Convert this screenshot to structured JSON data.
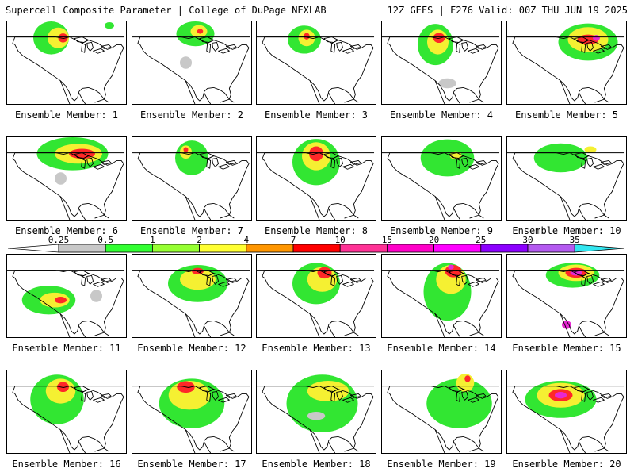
{
  "header": {
    "left": "Supercell Composite Parameter | College of DuPage NEXLAB",
    "right": "12Z GEFS | F276 Valid: 00Z THU JUN 19 2025"
  },
  "members": [
    {
      "label": "Ensemble Member: 1",
      "blobs": [
        [
          0.37,
          0.2,
          0.3,
          0.4,
          "green"
        ],
        [
          0.43,
          0.2,
          0.18,
          0.25,
          "yellow"
        ],
        [
          0.47,
          0.2,
          0.08,
          0.11,
          "red"
        ],
        [
          0.86,
          0.05,
          0.08,
          0.08,
          "green"
        ]
      ]
    },
    {
      "label": "Ensemble Member: 2",
      "blobs": [
        [
          0.53,
          0.15,
          0.32,
          0.3,
          "green"
        ],
        [
          0.56,
          0.12,
          0.14,
          0.15,
          "yellow"
        ],
        [
          0.57,
          0.12,
          0.05,
          0.06,
          "red"
        ],
        [
          0.45,
          0.5,
          0.1,
          0.15,
          "gray"
        ]
      ]
    },
    {
      "label": "Ensemble Member: 3",
      "blobs": [
        [
          0.4,
          0.22,
          0.28,
          0.34,
          "green"
        ],
        [
          0.42,
          0.2,
          0.14,
          0.2,
          "yellow"
        ],
        [
          0.42,
          0.18,
          0.05,
          0.08,
          "red"
        ]
      ]
    },
    {
      "label": "Ensemble Member: 4",
      "blobs": [
        [
          0.45,
          0.28,
          0.3,
          0.5,
          "green"
        ],
        [
          0.47,
          0.25,
          0.18,
          0.3,
          "yellow"
        ],
        [
          0.48,
          0.2,
          0.1,
          0.12,
          "red"
        ],
        [
          0.55,
          0.75,
          0.15,
          0.12,
          "gray"
        ]
      ]
    },
    {
      "label": "Ensemble Member: 5",
      "blobs": [
        [
          0.68,
          0.25,
          0.5,
          0.45,
          "green"
        ],
        [
          0.68,
          0.22,
          0.34,
          0.3,
          "yellow"
        ],
        [
          0.68,
          0.22,
          0.18,
          0.12,
          "red"
        ],
        [
          0.75,
          0.2,
          0.06,
          0.07,
          "magenta"
        ]
      ]
    },
    {
      "label": "Ensemble Member: 6",
      "blobs": [
        [
          0.55,
          0.2,
          0.6,
          0.4,
          "green"
        ],
        [
          0.6,
          0.2,
          0.4,
          0.24,
          "yellow"
        ],
        [
          0.63,
          0.2,
          0.22,
          0.12,
          "red"
        ],
        [
          0.45,
          0.5,
          0.1,
          0.15,
          "gray"
        ]
      ]
    },
    {
      "label": "Ensemble Member: 7",
      "blobs": [
        [
          0.5,
          0.25,
          0.28,
          0.42,
          "green"
        ],
        [
          0.45,
          0.18,
          0.1,
          0.16,
          "yellow"
        ],
        [
          0.45,
          0.15,
          0.04,
          0.06,
          "red"
        ]
      ]
    },
    {
      "label": "Ensemble Member: 8",
      "blobs": [
        [
          0.5,
          0.3,
          0.4,
          0.56,
          "green"
        ],
        [
          0.5,
          0.23,
          0.24,
          0.34,
          "yellow"
        ],
        [
          0.5,
          0.2,
          0.12,
          0.18,
          "red"
        ]
      ]
    },
    {
      "label": "Ensemble Member: 9",
      "blobs": [
        [
          0.55,
          0.25,
          0.45,
          0.45,
          "green"
        ],
        [
          0.62,
          0.22,
          0.1,
          0.1,
          "yellow"
        ]
      ]
    },
    {
      "label": "Ensemble Member: 10",
      "blobs": [
        [
          0.45,
          0.25,
          0.45,
          0.35,
          "green"
        ],
        [
          0.7,
          0.15,
          0.1,
          0.08,
          "yellow"
        ]
      ]
    },
    {
      "label": "Ensemble Member: 11",
      "blobs": [
        [
          0.35,
          0.55,
          0.45,
          0.35,
          "green"
        ],
        [
          0.4,
          0.55,
          0.25,
          0.18,
          "yellow"
        ],
        [
          0.45,
          0.55,
          0.1,
          0.08,
          "red"
        ],
        [
          0.75,
          0.5,
          0.1,
          0.15,
          "gray"
        ]
      ]
    },
    {
      "label": "Ensemble Member: 12",
      "blobs": [
        [
          0.55,
          0.35,
          0.5,
          0.45,
          "green"
        ],
        [
          0.55,
          0.3,
          0.3,
          0.25,
          "yellow"
        ],
        [
          0.55,
          0.2,
          0.1,
          0.08,
          "red"
        ]
      ]
    },
    {
      "label": "Ensemble Member: 13",
      "blobs": [
        [
          0.5,
          0.35,
          0.4,
          0.5,
          "green"
        ],
        [
          0.55,
          0.3,
          0.25,
          0.3,
          "yellow"
        ],
        [
          0.57,
          0.22,
          0.12,
          0.14,
          "red"
        ]
      ]
    },
    {
      "label": "Ensemble Member: 14",
      "blobs": [
        [
          0.55,
          0.45,
          0.4,
          0.7,
          "green"
        ],
        [
          0.58,
          0.3,
          0.25,
          0.35,
          "yellow"
        ],
        [
          0.6,
          0.2,
          0.14,
          0.15,
          "red"
        ],
        [
          0.58,
          0.15,
          0.05,
          0.06,
          "magenta"
        ]
      ]
    },
    {
      "label": "Ensemble Member: 15",
      "blobs": [
        [
          0.55,
          0.25,
          0.45,
          0.3,
          "green"
        ],
        [
          0.58,
          0.22,
          0.3,
          0.2,
          "yellow"
        ],
        [
          0.58,
          0.22,
          0.18,
          0.12,
          "red"
        ],
        [
          0.58,
          0.22,
          0.1,
          0.07,
          "magenta"
        ],
        [
          0.5,
          0.85,
          0.08,
          0.1,
          "magenta"
        ]
      ]
    },
    {
      "label": "Ensemble Member: 16",
      "blobs": [
        [
          0.42,
          0.35,
          0.45,
          0.6,
          "green"
        ],
        [
          0.45,
          0.25,
          0.25,
          0.3,
          "yellow"
        ],
        [
          0.47,
          0.2,
          0.1,
          0.12,
          "red"
        ]
      ]
    },
    {
      "label": "Ensemble Member: 17",
      "blobs": [
        [
          0.5,
          0.4,
          0.55,
          0.6,
          "green"
        ],
        [
          0.48,
          0.3,
          0.35,
          0.35,
          "yellow"
        ],
        [
          0.45,
          0.2,
          0.15,
          0.14,
          "red"
        ]
      ]
    },
    {
      "label": "Ensemble Member: 18",
      "blobs": [
        [
          0.55,
          0.4,
          0.6,
          0.7,
          "green"
        ],
        [
          0.6,
          0.25,
          0.35,
          0.25,
          "yellow"
        ],
        [
          0.5,
          0.55,
          0.15,
          0.1,
          "gray"
        ]
      ]
    },
    {
      "label": "Ensemble Member: 19",
      "blobs": [
        [
          0.65,
          0.4,
          0.55,
          0.6,
          "green"
        ],
        [
          0.7,
          0.15,
          0.15,
          0.22,
          "yellow"
        ],
        [
          0.72,
          0.1,
          0.05,
          0.08,
          "red"
        ]
      ]
    },
    {
      "label": "Ensemble Member: 20",
      "blobs": [
        [
          0.45,
          0.35,
          0.6,
          0.45,
          "green"
        ],
        [
          0.45,
          0.3,
          0.4,
          0.3,
          "yellow"
        ],
        [
          0.45,
          0.3,
          0.2,
          0.15,
          "red"
        ],
        [
          0.45,
          0.3,
          0.1,
          0.08,
          "magenta"
        ]
      ]
    }
  ],
  "colorbar": {
    "ticks": [
      "0.25",
      "0.5",
      "1",
      "2",
      "4",
      "7",
      "10",
      "15",
      "20",
      "25",
      "30",
      "35"
    ],
    "colors": [
      "#c8c8c8",
      "#32ff32",
      "#96ff32",
      "#ffff32",
      "#ff9600",
      "#ff0000",
      "#ff3296",
      "#ff00c8",
      "#ff00ff",
      "#8c00ff",
      "#b45af0",
      "#32e6f0"
    ]
  },
  "palette": {
    "gray": "#c8c8c8",
    "green": "#32e632",
    "yellow": "#f5f032",
    "red": "#ff2828",
    "magenta": "#e628d2",
    "land_line": "#000000",
    "lake": "#000000"
  }
}
